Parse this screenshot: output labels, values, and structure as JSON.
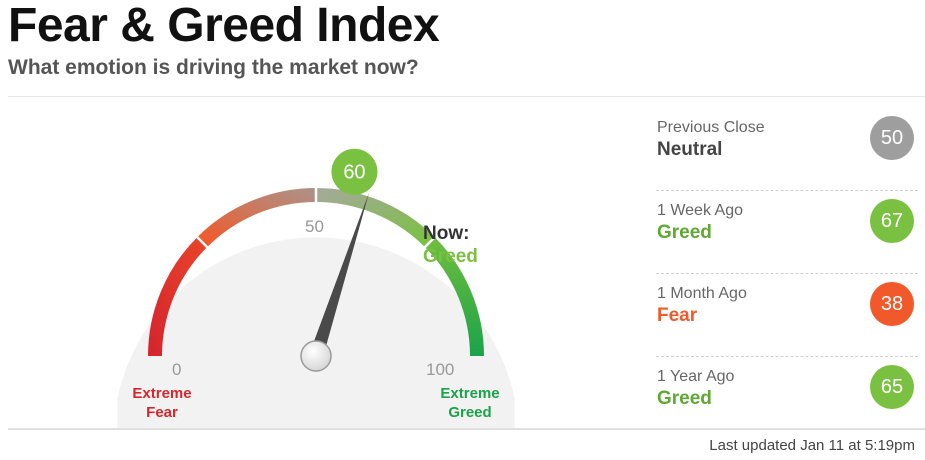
{
  "header": {
    "title": "Fear & Greed Index",
    "subtitle": "What emotion is driving the market now?"
  },
  "gauge": {
    "value": 60,
    "now_label": "Now:",
    "now_rating": "Greed",
    "now_color": "#7ac142",
    "scale_min_label": "0",
    "scale_mid_label": "50",
    "scale_max_label": "100",
    "extreme_fear_label": [
      "Extreme",
      "Fear"
    ],
    "extreme_greed_label": [
      "Extreme",
      "Greed"
    ],
    "colors": {
      "extreme_fear": "#d6262d",
      "fear": "#f1592a",
      "neutral": "#9c9c9c",
      "greed": "#7ac142",
      "extreme_greed": "#1aa34a"
    }
  },
  "history": [
    {
      "period": "Previous Close",
      "rating": "Neutral",
      "value": "50",
      "color": "#9e9e9e",
      "text_color": "#444444"
    },
    {
      "period": "1 Week Ago",
      "rating": "Greed",
      "value": "67",
      "color": "#7ac142",
      "text_color": "#5fa832"
    },
    {
      "period": "1 Month Ago",
      "rating": "Fear",
      "value": "38",
      "color": "#f1592a",
      "text_color": "#f1592a"
    },
    {
      "period": "1 Year Ago",
      "rating": "Greed",
      "value": "65",
      "color": "#7ac142",
      "text_color": "#5fa832"
    }
  ],
  "footer": {
    "last_updated": "Last updated Jan 11 at 5:19pm"
  }
}
